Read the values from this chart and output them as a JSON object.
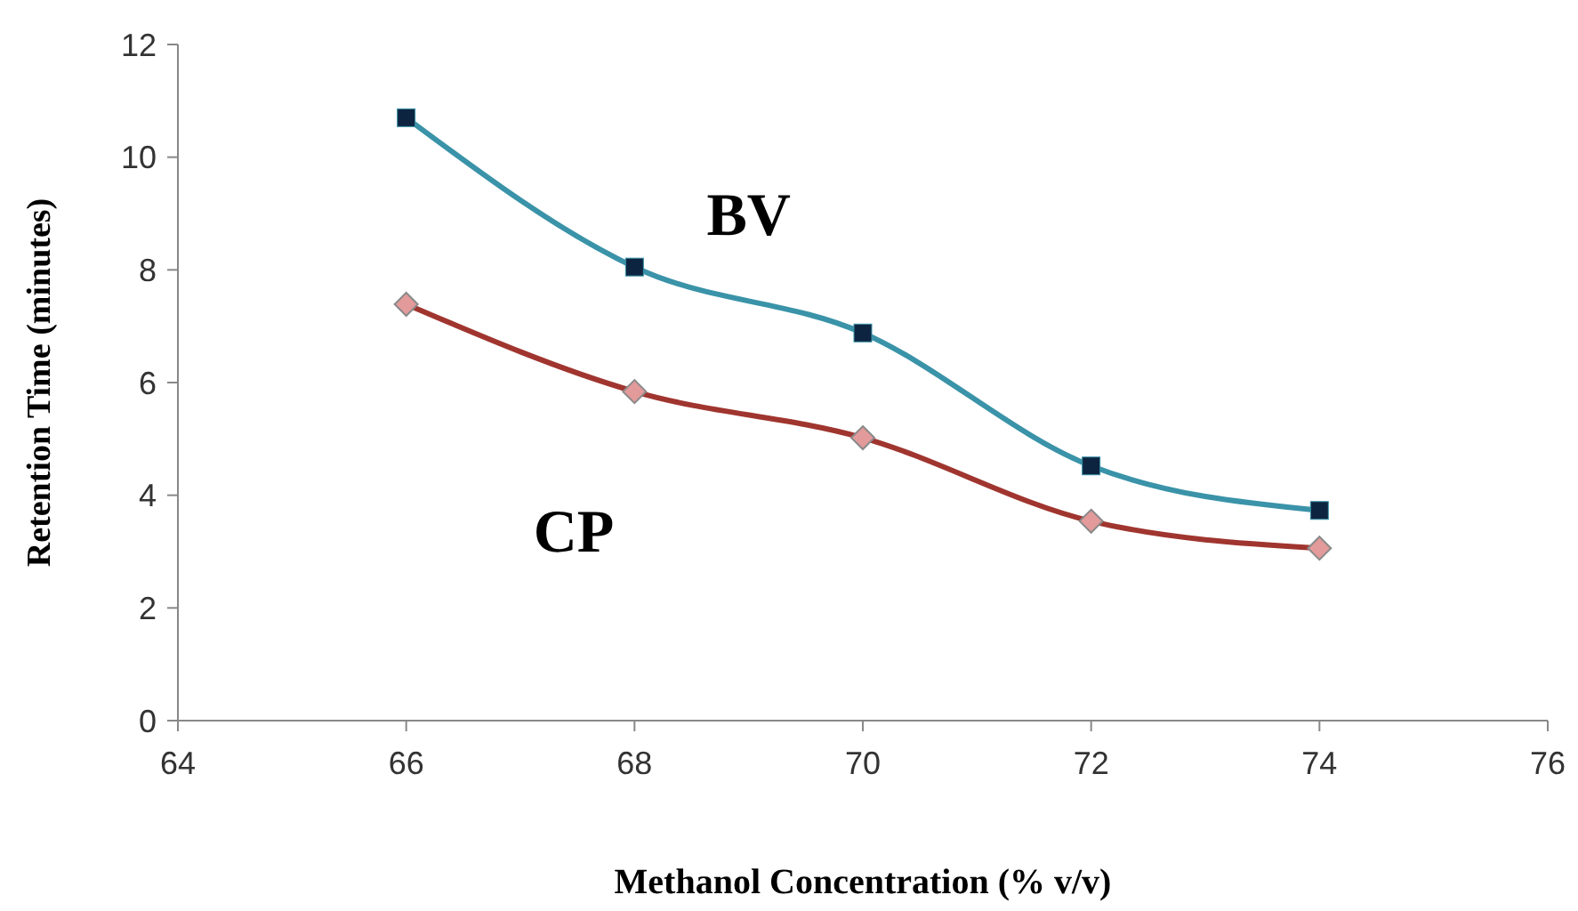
{
  "chart_data": {
    "type": "line",
    "xlabel": "Methanol Concentration (% v/v)",
    "ylabel": "Retention Time (minutes)",
    "x": [
      66,
      68,
      70,
      72,
      74
    ],
    "series": [
      {
        "name": "BV",
        "color": "#3a93a8",
        "marker": "square",
        "values": [
          10.7,
          8.05,
          6.88,
          4.52,
          3.73
        ]
      },
      {
        "name": "CP",
        "color": "#a0352f",
        "marker": "diamond",
        "values": [
          7.39,
          5.84,
          5.02,
          3.54,
          3.06
        ]
      }
    ],
    "xlim": [
      64,
      76
    ],
    "xticks": [
      64,
      66,
      68,
      70,
      72,
      74,
      76
    ],
    "ylim": [
      0,
      12
    ],
    "yticks": [
      0,
      2,
      4,
      6,
      8,
      10,
      12
    ],
    "grid": false,
    "line_style": "solid"
  }
}
